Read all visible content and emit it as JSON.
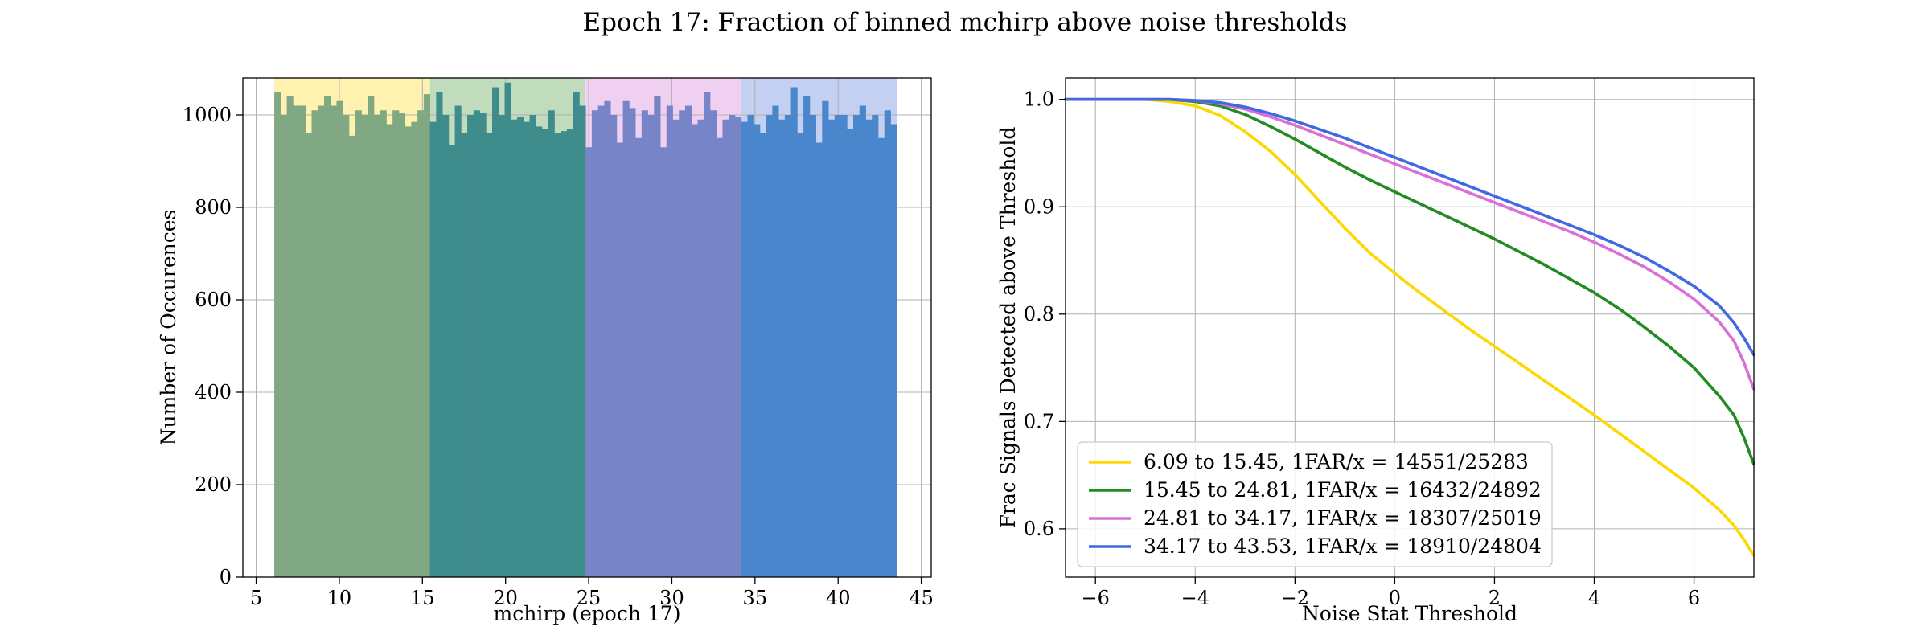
{
  "figure": {
    "title": "Epoch 17: Fraction of binned mchirp above noise thresholds"
  },
  "chart_data": [
    {
      "type": "bar",
      "subtype": "histogram",
      "xlabel": "mchirp (epoch 17)",
      "ylabel": "Number of Occurences",
      "xlim": [
        4.2,
        45.6
      ],
      "ylim": [
        0,
        1080
      ],
      "xticks": [
        5,
        10,
        15,
        20,
        25,
        30,
        35,
        40,
        45
      ],
      "yticks": [
        0,
        200,
        400,
        600,
        800,
        1000
      ],
      "grid": true,
      "bin_range": [
        6.09,
        43.53
      ],
      "bin_width": 0.3744,
      "bar_colors_by_region": [
        "#80a882",
        "#3f8c8d",
        "#7784c8",
        "#4a86cc"
      ],
      "regions": [
        {
          "range": [
            6.09,
            15.45
          ],
          "color": "#fff1b0"
        },
        {
          "range": [
            15.45,
            24.81
          ],
          "color": "#c0dcbc"
        },
        {
          "range": [
            24.81,
            34.17
          ],
          "color": "#f0d0f0"
        },
        {
          "range": [
            34.17,
            43.53
          ],
          "color": "#c4d0f2"
        }
      ],
      "values": [
        1050,
        1000,
        1040,
        1020,
        1020,
        960,
        1010,
        1020,
        1040,
        1020,
        1030,
        1000,
        955,
        1010,
        1000,
        1040,
        1000,
        1010,
        980,
        1010,
        1005,
        975,
        985,
        1010,
        1045,
        985,
        1050,
        1000,
        935,
        1020,
        960,
        1000,
        1010,
        1005,
        960,
        1060,
        1000,
        1070,
        990,
        995,
        985,
        1000,
        975,
        970,
        1010,
        960,
        965,
        970,
        1050,
        1020,
        930,
        1010,
        1020,
        1030,
        1000,
        940,
        1030,
        1015,
        950,
        1010,
        1000,
        1040,
        930,
        1020,
        990,
        1010,
        1020,
        980,
        990,
        1050,
        1010,
        950,
        990,
        1000,
        995,
        985,
        1000,
        980,
        960,
        1000,
        1020,
        990,
        1000,
        1060,
        960,
        1040,
        1000,
        940,
        1030,
        990,
        1000,
        1000,
        970,
        1000,
        1020,
        990,
        1000,
        950,
        1010,
        980
      ]
    },
    {
      "type": "line",
      "xlabel": "Noise Stat Threshold",
      "ylabel": "Frac Signals Detected above Threshold",
      "xlim": [
        -6.6,
        7.2
      ],
      "ylim": [
        0.555,
        1.02
      ],
      "xticks": [
        -6,
        -4,
        -2,
        0,
        2,
        4,
        6
      ],
      "yticks": [
        0.6,
        0.7,
        0.8,
        0.9,
        1.0
      ],
      "ytick_labels": [
        "0.6",
        "0.7",
        "0.8",
        "0.9",
        "1.0"
      ],
      "grid": true,
      "legend_position": "lower-left",
      "x": [
        -6.6,
        -6,
        -5,
        -4.5,
        -4,
        -3.5,
        -3,
        -2.5,
        -2,
        -1.5,
        -1,
        -0.5,
        0,
        0.5,
        1,
        1.5,
        2,
        2.5,
        3,
        3.5,
        4,
        4.5,
        5,
        5.5,
        6,
        6.5,
        6.8,
        7,
        7.2
      ],
      "series": [
        {
          "name": "6.09 to 15.45, 1FAR/x = 14551/25283",
          "color": "#ffd700",
          "values": [
            1.0,
            1.0,
            1.0,
            0.998,
            0.994,
            0.985,
            0.97,
            0.952,
            0.93,
            0.905,
            0.88,
            0.857,
            0.838,
            0.82,
            0.803,
            0.786,
            0.77,
            0.754,
            0.738,
            0.722,
            0.706,
            0.689,
            0.672,
            0.655,
            0.638,
            0.618,
            0.603,
            0.59,
            0.575
          ]
        },
        {
          "name": "15.45 to 24.81, 1FAR/x = 16432/24892",
          "color": "#228b22",
          "values": [
            1.0,
            1.0,
            1.0,
            1.0,
            0.998,
            0.994,
            0.986,
            0.975,
            0.963,
            0.95,
            0.937,
            0.925,
            0.914,
            0.903,
            0.892,
            0.881,
            0.87,
            0.858,
            0.846,
            0.833,
            0.82,
            0.805,
            0.788,
            0.77,
            0.75,
            0.724,
            0.706,
            0.685,
            0.66
          ]
        },
        {
          "name": "24.81 to 34.17, 1FAR/x = 18307/25019",
          "color": "#da70d6",
          "values": [
            1.0,
            1.0,
            1.0,
            1.0,
            0.999,
            0.996,
            0.991,
            0.984,
            0.976,
            0.967,
            0.958,
            0.949,
            0.94,
            0.931,
            0.922,
            0.913,
            0.904,
            0.895,
            0.886,
            0.877,
            0.867,
            0.856,
            0.844,
            0.83,
            0.814,
            0.793,
            0.775,
            0.755,
            0.73
          ]
        },
        {
          "name": "34.17 to 43.53, 1FAR/x = 18910/24804",
          "color": "#4169e1",
          "values": [
            1.0,
            1.0,
            1.0,
            1.0,
            0.999,
            0.997,
            0.993,
            0.987,
            0.98,
            0.972,
            0.964,
            0.955,
            0.946,
            0.937,
            0.928,
            0.919,
            0.91,
            0.901,
            0.892,
            0.883,
            0.874,
            0.864,
            0.853,
            0.84,
            0.826,
            0.808,
            0.792,
            0.778,
            0.762
          ]
        }
      ]
    }
  ]
}
